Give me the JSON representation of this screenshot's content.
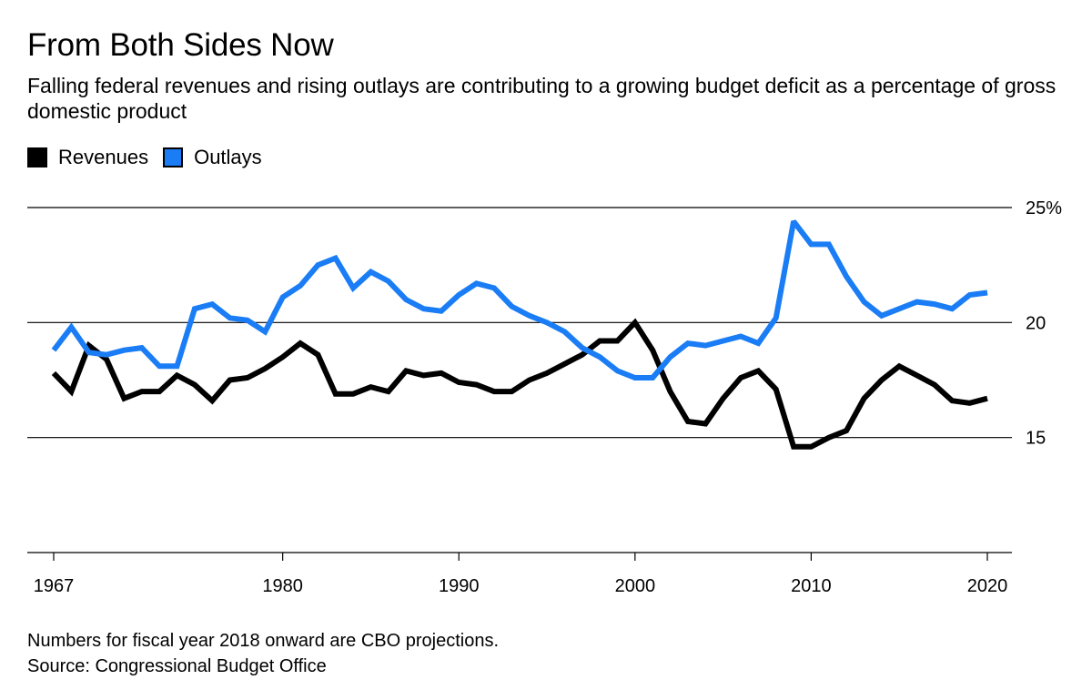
{
  "chart_data": {
    "type": "line",
    "title": "From Both Sides Now",
    "subtitle": "Falling federal revenues and rising outlays are contributing to a growing budget deficit as a percentage of gross domestic product",
    "xlabel": "",
    "ylabel": "",
    "xlim": [
      1967,
      2020
    ],
    "ylim": [
      10,
      25
    ],
    "y_ticks": [
      {
        "value": 25,
        "label": "25%"
      },
      {
        "value": 20,
        "label": "20"
      },
      {
        "value": 15,
        "label": "15"
      }
    ],
    "x_ticks": [
      {
        "value": 1967,
        "label": "1967"
      },
      {
        "value": 1980,
        "label": "1980"
      },
      {
        "value": 1990,
        "label": "1990"
      },
      {
        "value": 2000,
        "label": "2000"
      },
      {
        "value": 2010,
        "label": "2010"
      },
      {
        "value": 2020,
        "label": "2020"
      }
    ],
    "legend_position": "top-left",
    "x": [
      1967,
      1968,
      1969,
      1970,
      1971,
      1972,
      1973,
      1974,
      1975,
      1976,
      1977,
      1978,
      1979,
      1980,
      1981,
      1982,
      1983,
      1984,
      1985,
      1986,
      1987,
      1988,
      1989,
      1990,
      1991,
      1992,
      1993,
      1994,
      1995,
      1996,
      1997,
      1998,
      1999,
      2000,
      2001,
      2002,
      2003,
      2004,
      2005,
      2006,
      2007,
      2008,
      2009,
      2010,
      2011,
      2012,
      2013,
      2014,
      2015,
      2016,
      2017,
      2018,
      2019,
      2020
    ],
    "series": [
      {
        "name": "Revenues",
        "color": "#000000",
        "values": [
          17.8,
          17.0,
          19.0,
          18.4,
          16.7,
          17.0,
          17.0,
          17.7,
          17.3,
          16.6,
          17.5,
          17.6,
          18.0,
          18.5,
          19.1,
          18.6,
          16.9,
          16.9,
          17.2,
          17.0,
          17.9,
          17.7,
          17.8,
          17.4,
          17.3,
          17.0,
          17.0,
          17.5,
          17.8,
          18.2,
          18.6,
          19.2,
          19.2,
          20.0,
          18.8,
          17.0,
          15.7,
          15.6,
          16.7,
          17.6,
          17.9,
          17.1,
          14.6,
          14.6,
          15.0,
          15.3,
          16.7,
          17.5,
          18.1,
          17.7,
          17.3,
          16.6,
          16.5,
          16.7
        ]
      },
      {
        "name": "Outlays",
        "color": "#1a7df5",
        "values": [
          18.8,
          19.8,
          18.7,
          18.6,
          18.8,
          18.9,
          18.1,
          18.1,
          20.6,
          20.8,
          20.2,
          20.1,
          19.6,
          21.1,
          21.6,
          22.5,
          22.8,
          21.5,
          22.2,
          21.8,
          21.0,
          20.6,
          20.5,
          21.2,
          21.7,
          21.5,
          20.7,
          20.3,
          20.0,
          19.6,
          18.9,
          18.5,
          17.9,
          17.6,
          17.6,
          18.5,
          19.1,
          19.0,
          19.2,
          19.4,
          19.1,
          20.2,
          24.4,
          23.4,
          23.4,
          22.0,
          20.9,
          20.3,
          20.6,
          20.9,
          20.8,
          20.6,
          21.2,
          21.3
        ]
      }
    ]
  },
  "legend": {
    "revenues_label": "Revenues",
    "outlays_label": "Outlays",
    "revenues_color": "#000000",
    "outlays_color": "#1a7df5"
  },
  "footnote": {
    "note": "Numbers for fiscal year 2018 onward are CBO projections.",
    "source": "Source: Congressional Budget Office"
  }
}
